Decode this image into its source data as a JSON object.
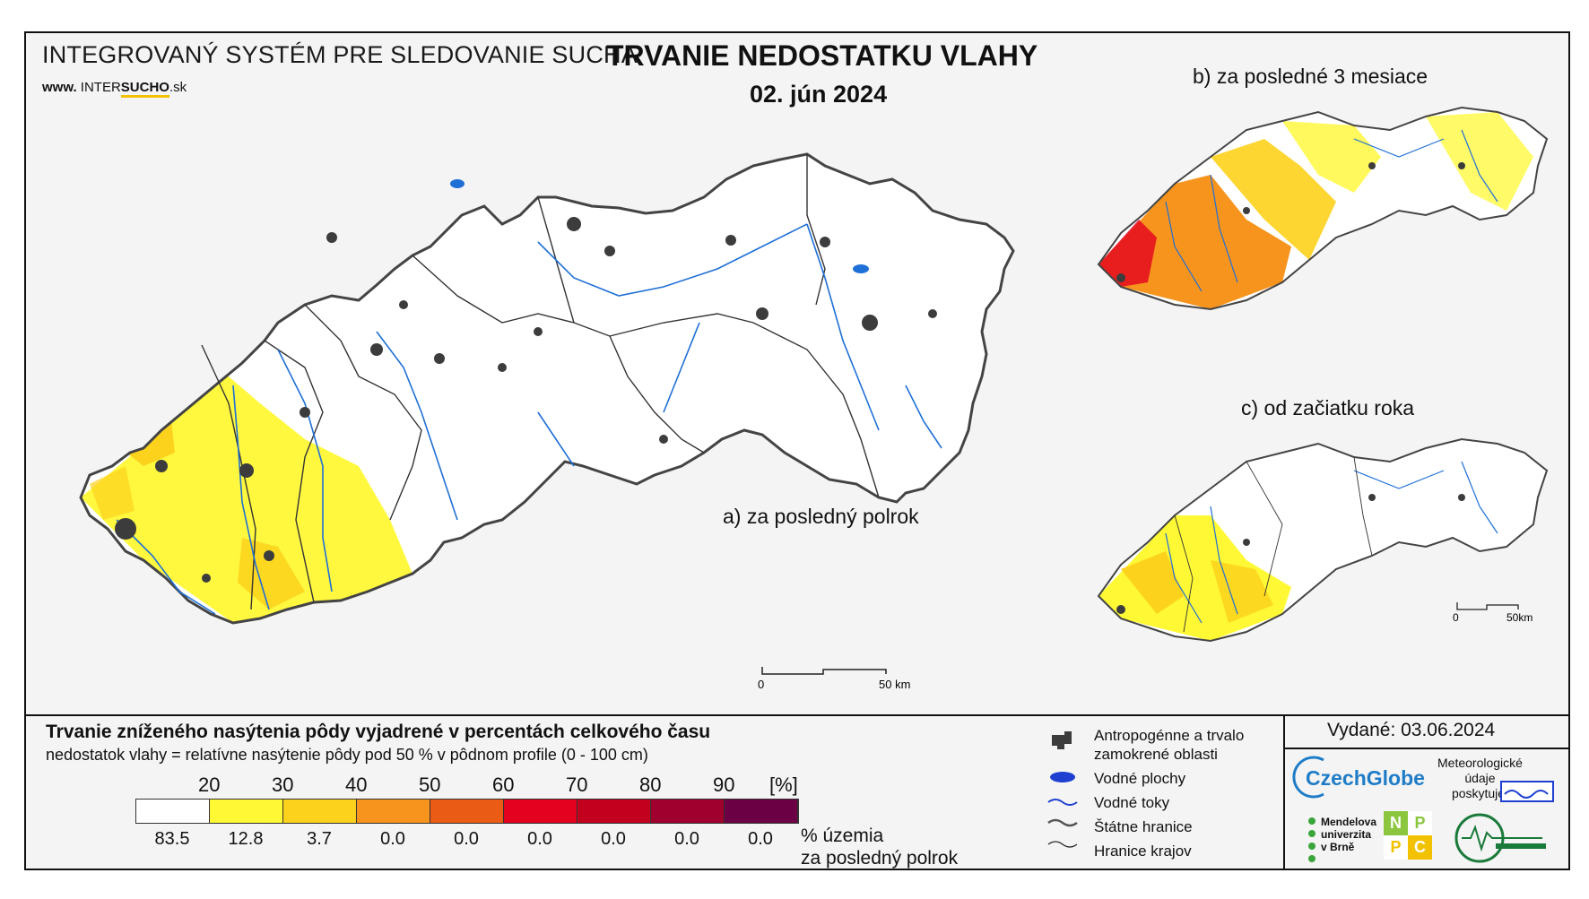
{
  "header": {
    "system_title": "INTEGROVANÝ SYSTÉM PRE SLEDOVANIE SUCHA",
    "www_prefix": "www.",
    "www_brand": "INTER",
    "www_sucho": "SUCHO",
    "www_suffix": ".sk",
    "main_title": "TRVANIE NEDOSTATKU VLAHY",
    "date": "02. jún 2024"
  },
  "maps": {
    "a_label": "a) za posledný polrok",
    "b_label": "b) za posledné 3 mesiace",
    "c_label": "c) od začiatku roka",
    "scale_main": {
      "zero": "0",
      "end": "50 km"
    },
    "scale_small": {
      "zero": "0",
      "end": "50km"
    }
  },
  "legend": {
    "title": "Trvanie zníženého nasýtenia pôdy vyjadrené v percentách celkového času",
    "subtitle": "nedostatok vlahy = relatívne nasýtenie pôdy pod 50 % v pôdnom profile (0 - 100 cm)",
    "thresholds": [
      "20",
      "30",
      "40",
      "50",
      "60",
      "70",
      "80",
      "90"
    ],
    "unit": "[%]",
    "colors": [
      "#ffffff",
      "#fff835",
      "#fdd21c",
      "#f7941d",
      "#ea5b16",
      "#e4001f",
      "#c4001f",
      "#a0002e",
      "#6c0044"
    ],
    "percent_territory": [
      "83.5",
      "12.8",
      "3.7",
      "0.0",
      "0.0",
      "0.0",
      "0.0",
      "0.0",
      "0.0"
    ],
    "percent_note_line1": "% územia",
    "percent_note_line2": "za posledný polrok"
  },
  "symbols": [
    {
      "icon": "urban-area-icon",
      "label": "Antropogénne a trvalo\nzamokrené oblasti"
    },
    {
      "icon": "water-body-icon",
      "label": "Vodné plochy"
    },
    {
      "icon": "river-icon",
      "label": "Vodné toky"
    },
    {
      "icon": "state-border-icon",
      "label": "Štátne hranice"
    },
    {
      "icon": "region-border-icon",
      "label": "Hranice krajov"
    }
  ],
  "issued": "Vydané: 03.06.2024",
  "logos": {
    "czechglobe": "CzechGlobe",
    "meteo_note": "Meteorologické\núdaje\nposkytuje:",
    "mendel": "Mendelova\nuniverzita\nv Brně",
    "nppc": [
      "N",
      "P",
      "P",
      "C"
    ]
  }
}
